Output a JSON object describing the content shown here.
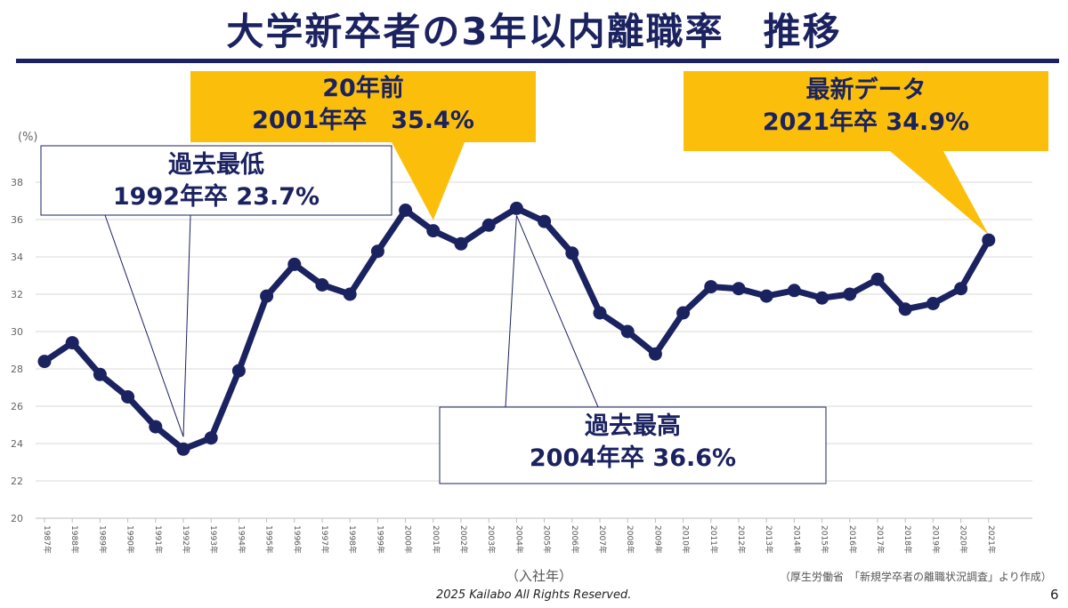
{
  "title": "大学新卒者の3年以内離職率　推移",
  "y_unit": "(%)",
  "x_axis_label": "（入社年）",
  "source_note": "（厚生労働省　「新規学卒者の離職状況調査」より作成）",
  "footer": "2025  Kailabo All Rights Reserved.",
  "page_number": "6",
  "colors": {
    "title": "#1b2260",
    "line": "#1b2260",
    "callout_fill": "#fbbf0b",
    "grid": "#d9d9d9"
  },
  "callouts": {
    "min": {
      "line1": "過去最低",
      "line2": "1992年卒 23.7%"
    },
    "twenty_years_ago": {
      "line1": "20年前",
      "line2": "2001年卒　35.4%"
    },
    "max": {
      "line1": "過去最高",
      "line2": "2004年卒 36.6%"
    },
    "latest": {
      "line1": "最新データ",
      "line2": "2021年卒 34.9%"
    }
  },
  "chart_data": {
    "type": "line",
    "title": "大学新卒者の3年以内離職率　推移",
    "xlabel": "（入社年）",
    "ylabel": "(%)",
    "ylim": [
      20,
      38
    ],
    "yticks": [
      20,
      22,
      24,
      26,
      28,
      30,
      32,
      34,
      36,
      38
    ],
    "grid": true,
    "categories": [
      "1987年",
      "1988年",
      "1989年",
      "1990年",
      "1991年",
      "1992年",
      "1993年",
      "1994年",
      "1995年",
      "1996年",
      "1997年",
      "1998年",
      "1999年",
      "2000年",
      "2001年",
      "2002年",
      "2003年",
      "2004年",
      "2005年",
      "2006年",
      "2007年",
      "2008年",
      "2009年",
      "2010年",
      "2011年",
      "2012年",
      "2013年",
      "2014年",
      "2015年",
      "2016年",
      "2017年",
      "2018年",
      "2019年",
      "2020年",
      "2021年"
    ],
    "values": [
      28.4,
      29.4,
      27.7,
      26.5,
      24.9,
      23.7,
      24.3,
      27.9,
      31.9,
      33.6,
      32.5,
      32.0,
      34.3,
      36.5,
      35.4,
      34.7,
      35.7,
      36.6,
      35.9,
      34.2,
      31.0,
      30.0,
      28.8,
      31.0,
      32.4,
      32.3,
      31.9,
      32.2,
      31.8,
      32.0,
      32.8,
      31.2,
      31.5,
      32.3,
      34.9
    ]
  }
}
